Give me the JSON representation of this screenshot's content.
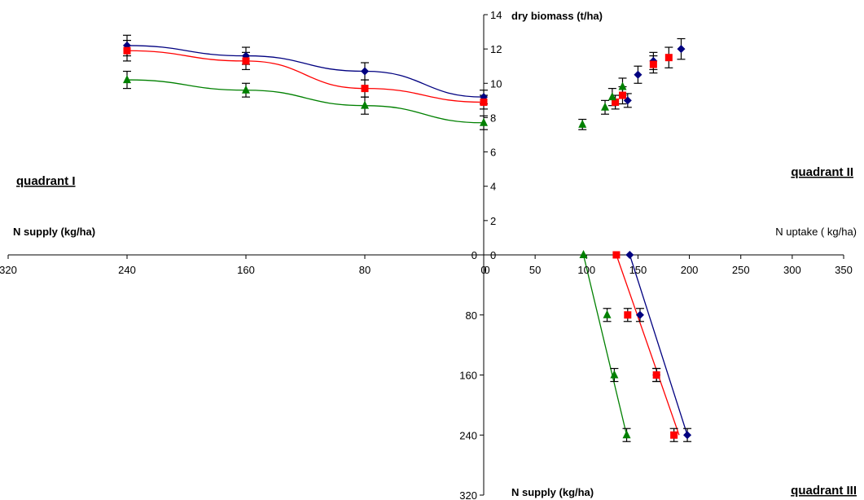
{
  "chart_data": {
    "type": "scatter",
    "title": "",
    "labels": {
      "y_axis_title": "dry biomass (t/ha)",
      "left_x_title": "N supply (kg/ha)",
      "right_x_title": "N uptake ( kg/ha)",
      "bottom_axis_title": "N supply (kg/ha)",
      "quadrant_1": "quadrant I",
      "quadrant_2": "quadrant II",
      "quadrant_3": "quadrant III"
    },
    "axes": {
      "biomass_range": [
        0,
        14
      ],
      "biomass_ticks": [
        "0",
        "2",
        "4",
        "6",
        "8",
        "10",
        "12",
        "14"
      ],
      "n_supply_left_range": [
        0,
        320
      ],
      "n_supply_left_ticks": [
        "320",
        "240",
        "160",
        "80",
        "0"
      ],
      "n_uptake_range": [
        0,
        350
      ],
      "n_uptake_ticks": [
        "0",
        "50",
        "100",
        "150",
        "200",
        "250",
        "300",
        "350"
      ],
      "n_supply_down_range": [
        0,
        320
      ],
      "n_supply_down_ticks": [
        "80",
        "160",
        "240",
        "320"
      ]
    },
    "series": [
      {
        "color": "#000080",
        "marker": "diamond",
        "supply_biomass": [
          [
            0,
            9.2
          ],
          [
            80,
            10.7
          ],
          [
            160,
            11.6
          ],
          [
            240,
            12.2
          ]
        ],
        "supply_biomass_err": [
          0.4,
          0.5,
          0.5,
          0.6
        ],
        "uptake_biomass": [
          [
            140,
            9.0
          ],
          [
            150,
            10.5
          ],
          [
            165,
            11.3
          ],
          [
            192,
            12.0
          ]
        ],
        "uptake_biomass_err": [
          0.4,
          0.5,
          0.5,
          0.6
        ],
        "uptake_supply_points": [
          [
            142,
            0
          ],
          [
            152,
            80
          ],
          [
            168,
            160
          ],
          [
            198,
            240
          ]
        ],
        "uptake_supply_line": [
          [
            142,
            0
          ],
          [
            198,
            240
          ]
        ]
      },
      {
        "color": "#ff0000",
        "marker": "square",
        "supply_biomass": [
          [
            0,
            8.9
          ],
          [
            80,
            9.7
          ],
          [
            160,
            11.3
          ],
          [
            240,
            11.9
          ]
        ],
        "supply_biomass_err": [
          0.4,
          0.5,
          0.5,
          0.6
        ],
        "uptake_biomass": [
          [
            128,
            8.9
          ],
          [
            135,
            9.3
          ],
          [
            165,
            11.1
          ],
          [
            180,
            11.5
          ]
        ],
        "uptake_biomass_err": [
          0.4,
          0.5,
          0.5,
          0.6
        ],
        "uptake_supply_points": [
          [
            129,
            0
          ],
          [
            140,
            80
          ],
          [
            168,
            160
          ],
          [
            185,
            240
          ]
        ],
        "uptake_supply_line": [
          [
            129,
            0
          ],
          [
            190,
            240
          ]
        ]
      },
      {
        "color": "#008000",
        "marker": "triangle",
        "supply_biomass": [
          [
            0,
            7.7
          ],
          [
            80,
            8.7
          ],
          [
            160,
            9.6
          ],
          [
            240,
            10.2
          ]
        ],
        "supply_biomass_err": [
          0.4,
          0.5,
          0.4,
          0.5
        ],
        "uptake_biomass": [
          [
            96,
            7.6
          ],
          [
            118,
            8.6
          ],
          [
            125,
            9.2
          ],
          [
            135,
            9.8
          ]
        ],
        "uptake_biomass_err": [
          0.3,
          0.4,
          0.5,
          0.5
        ],
        "uptake_supply_points": [
          [
            97,
            0
          ],
          [
            120,
            80
          ],
          [
            127,
            160
          ],
          [
            139,
            240
          ]
        ],
        "uptake_supply_line": [
          [
            97,
            0
          ],
          [
            139,
            240
          ]
        ]
      }
    ]
  }
}
